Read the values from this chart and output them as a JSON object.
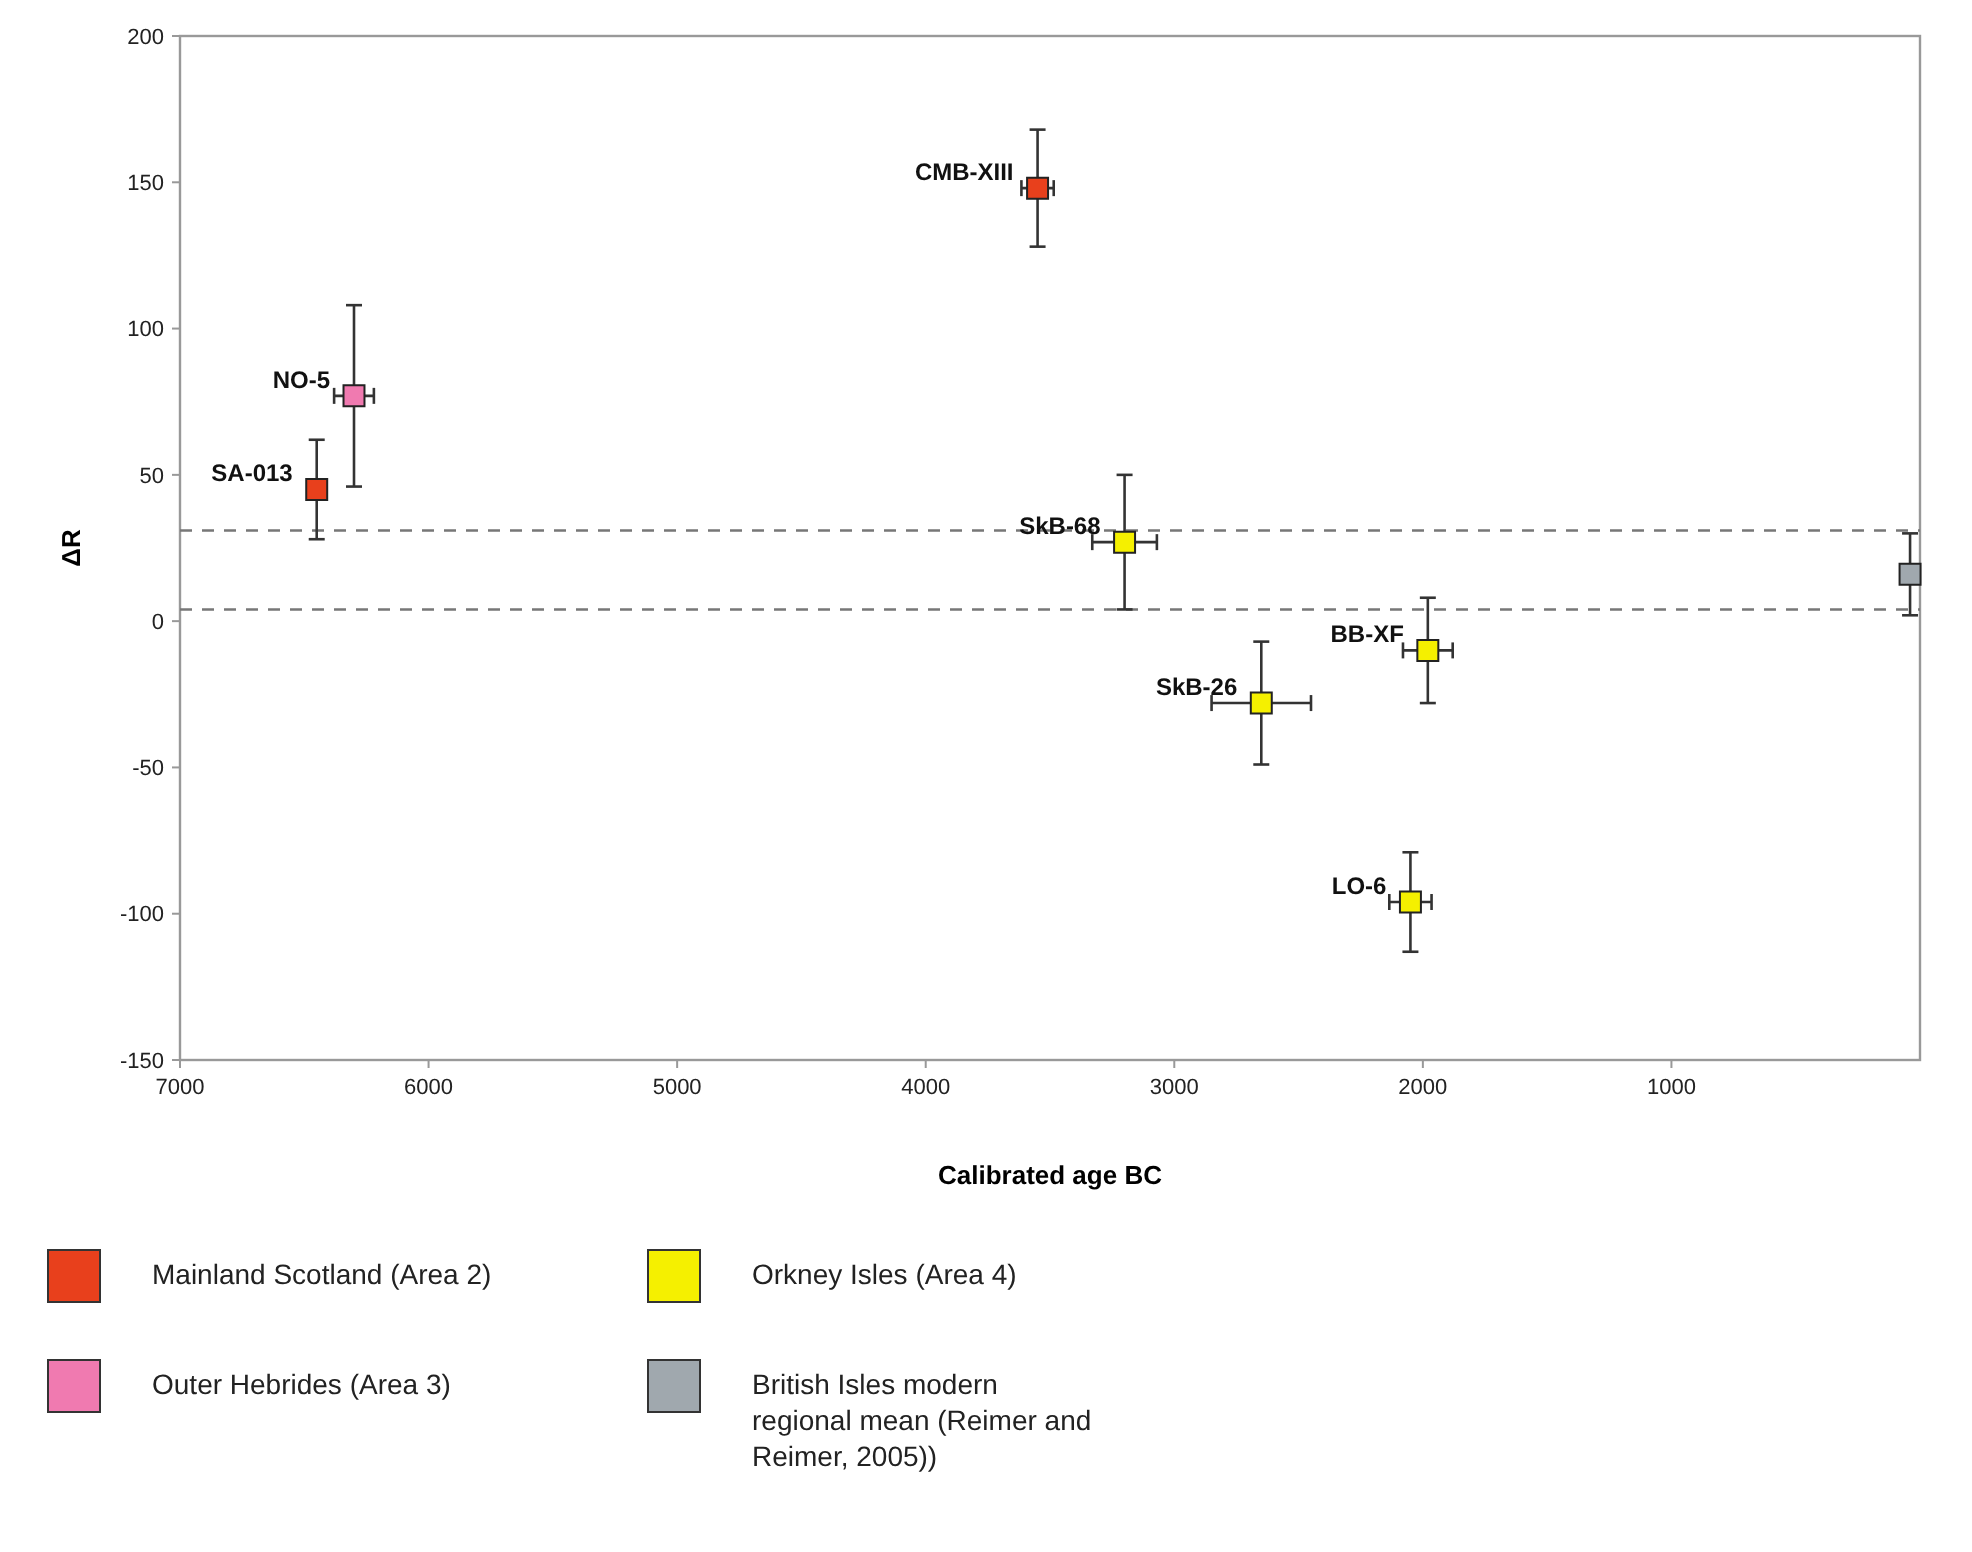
{
  "chart_data": {
    "type": "scatter",
    "xlabel": "Calibrated age BC",
    "ylabel": "ΔR",
    "xlim": [
      7000,
      0
    ],
    "xticks": [
      7000,
      6000,
      5000,
      4000,
      3000,
      2000,
      1000
    ],
    "ylim": [
      -150,
      200
    ],
    "yticks": [
      -150,
      -100,
      -50,
      0,
      50,
      100,
      150,
      200
    ],
    "grid": false,
    "marker": "square",
    "legend": "bottom",
    "series": [
      {
        "name": "Mainland Scotland (Area 2)",
        "color": "#e8401c",
        "x": [
          6450,
          3550
        ],
        "values": [
          45,
          148
        ],
        "errors": [
          17,
          20
        ],
        "xerrors": [
          null,
          65
        ]
      },
      {
        "name": "Outer Hebrides (Area 3)",
        "color": "#f07ab0",
        "x": [
          6300
        ],
        "values": [
          77
        ],
        "errors": [
          31
        ],
        "xerrors": [
          80
        ]
      },
      {
        "name": "Orkney Isles (Area 4)",
        "color": "#f5f000",
        "x": [
          3200,
          2650,
          1980,
          2050
        ],
        "values": [
          27,
          -28,
          -10,
          -96
        ],
        "errors": [
          23,
          21,
          18,
          17
        ],
        "xerrors": [
          130,
          200,
          100,
          85
        ]
      },
      {
        "name": "British Isles modern regional mean (Reimer and Reimer, 2005))",
        "color": "#a0a8ae",
        "x": [
          40
        ],
        "values": [
          16
        ],
        "errors": [
          14
        ],
        "xerrors": [
          null
        ]
      }
    ],
    "ref_lines": [
      {
        "axis": "y",
        "value": 31,
        "line_style": "dashed",
        "color": "#777777"
      },
      {
        "axis": "y",
        "value": 4,
        "line_style": "dashed",
        "color": "#777777"
      }
    ],
    "annotations": [
      {
        "text": "SA-013",
        "x": 6450,
        "y": 45
      },
      {
        "text": "NO-5",
        "x": 6300,
        "y": 77
      },
      {
        "text": "CMB-XIII",
        "x": 3550,
        "y": 148
      },
      {
        "text": "SkB-68",
        "x": 3200,
        "y": 27
      },
      {
        "text": "SkB-26",
        "x": 2650,
        "y": -28
      },
      {
        "text": "BB-XF",
        "x": 1980,
        "y": -10
      },
      {
        "text": "LO-6",
        "x": 2050,
        "y": -96
      }
    ]
  }
}
